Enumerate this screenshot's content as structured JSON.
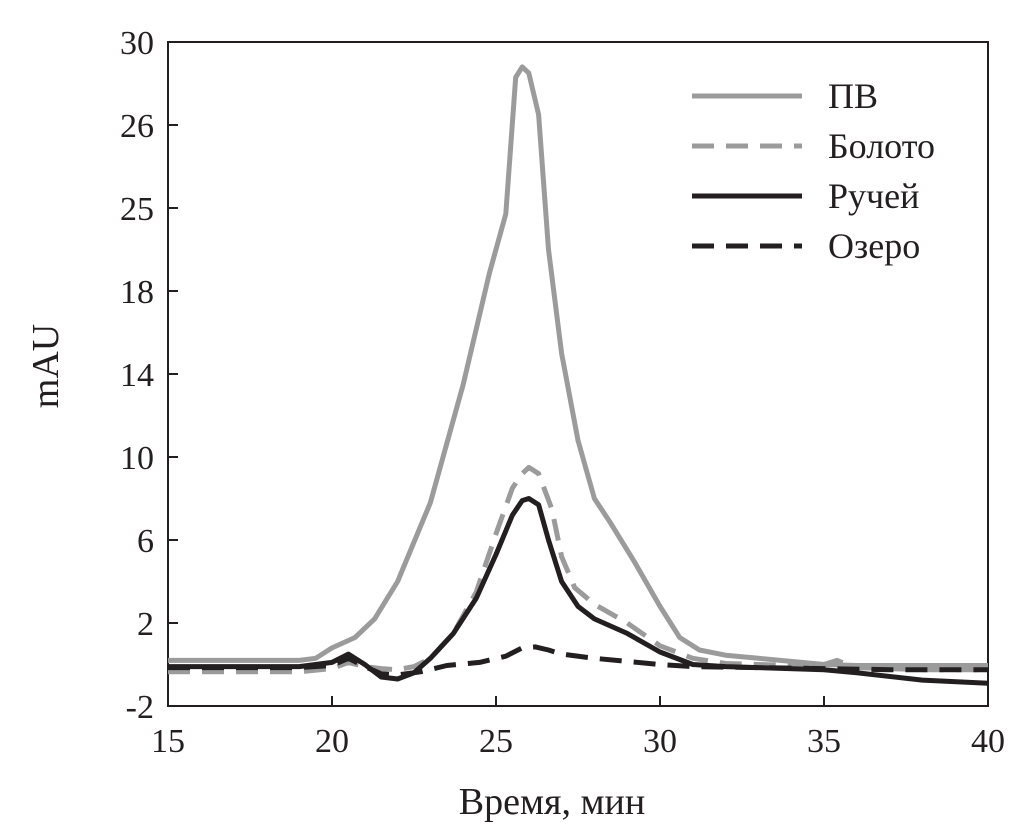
{
  "chart_data": {
    "type": "line",
    "xlabel": "Время, мин",
    "ylabel": "mAU",
    "xlim": [
      15,
      40
    ],
    "x_ticks": [
      "15",
      "20",
      "25",
      "30",
      "35",
      "40"
    ],
    "y_ticks": [
      "30",
      "26",
      "25",
      "18",
      "14",
      "10",
      "6",
      "2",
      "-2"
    ],
    "grid": false,
    "legend_position": "top-right",
    "series": [
      {
        "name": "ПВ",
        "color": "#9b9b9b",
        "dash": "solid",
        "points": [
          [
            15,
            0.2
          ],
          [
            19,
            0.2
          ],
          [
            19.5,
            0.3
          ],
          [
            20,
            0.8
          ],
          [
            20.7,
            1.3
          ],
          [
            21.3,
            2.2
          ],
          [
            22,
            4.0
          ],
          [
            23,
            7.8
          ],
          [
            24,
            13.5
          ],
          [
            24.8,
            19.5
          ],
          [
            25.3,
            24.5
          ],
          [
            25.6,
            28.3
          ],
          [
            25.8,
            28.8
          ],
          [
            26.0,
            28.5
          ],
          [
            26.3,
            26.5
          ],
          [
            26.6,
            21.5
          ],
          [
            27.0,
            15.0
          ],
          [
            27.5,
            10.8
          ],
          [
            28.0,
            8.0
          ],
          [
            28.5,
            6.8
          ],
          [
            29.2,
            5.0
          ],
          [
            30.0,
            2.8
          ],
          [
            30.6,
            1.3
          ],
          [
            31.2,
            0.7
          ],
          [
            32,
            0.45
          ],
          [
            33,
            0.3
          ],
          [
            34,
            0.15
          ],
          [
            35,
            0.0
          ],
          [
            36,
            -0.05
          ],
          [
            40,
            -0.05
          ]
        ]
      },
      {
        "name": "Болото",
        "color": "#9b9b9b",
        "dash": "dashed",
        "points": [
          [
            15,
            -0.35
          ],
          [
            19,
            -0.35
          ],
          [
            20,
            -0.2
          ],
          [
            20.5,
            0.1
          ],
          [
            21,
            -0.1
          ],
          [
            21.5,
            -0.2
          ],
          [
            22,
            -0.25
          ],
          [
            22.5,
            -0.1
          ],
          [
            23,
            0.3
          ],
          [
            23.7,
            1.5
          ],
          [
            24.4,
            3.5
          ],
          [
            25,
            6.3
          ],
          [
            25.5,
            8.5
          ],
          [
            25.8,
            9.2
          ],
          [
            26.0,
            9.5
          ],
          [
            26.3,
            9.2
          ],
          [
            26.7,
            7.5
          ],
          [
            27.0,
            5.2
          ],
          [
            27.4,
            3.7
          ],
          [
            28.0,
            2.9
          ],
          [
            29.0,
            2.0
          ],
          [
            30.0,
            0.9
          ],
          [
            31.0,
            0.3
          ],
          [
            32,
            0.05
          ],
          [
            33,
            0.0
          ],
          [
            34,
            -0.05
          ],
          [
            35,
            0.0
          ],
          [
            35.4,
            0.2
          ],
          [
            35.7,
            0.0
          ],
          [
            36,
            -0.15
          ],
          [
            38,
            -0.25
          ],
          [
            40,
            -0.25
          ]
        ]
      },
      {
        "name": "Ручей",
        "color": "#231f20",
        "dash": "solid",
        "points": [
          [
            15,
            -0.1
          ],
          [
            19,
            -0.1
          ],
          [
            20,
            0.1
          ],
          [
            20.5,
            0.5
          ],
          [
            21,
            0.0
          ],
          [
            21.5,
            -0.6
          ],
          [
            22,
            -0.7
          ],
          [
            22.5,
            -0.4
          ],
          [
            23,
            0.3
          ],
          [
            23.7,
            1.5
          ],
          [
            24.4,
            3.2
          ],
          [
            25,
            5.3
          ],
          [
            25.5,
            7.2
          ],
          [
            25.8,
            7.9
          ],
          [
            26.0,
            8.0
          ],
          [
            26.3,
            7.7
          ],
          [
            26.6,
            6.0
          ],
          [
            27.0,
            4.0
          ],
          [
            27.5,
            2.8
          ],
          [
            28.0,
            2.2
          ],
          [
            29.0,
            1.5
          ],
          [
            30.0,
            0.6
          ],
          [
            31.0,
            0.0
          ],
          [
            32,
            -0.1
          ],
          [
            33,
            -0.15
          ],
          [
            35,
            -0.25
          ],
          [
            36,
            -0.4
          ],
          [
            38,
            -0.75
          ],
          [
            40,
            -0.9
          ]
        ]
      },
      {
        "name": "Озеро",
        "color": "#231f20",
        "dash": "dashed",
        "points": [
          [
            15,
            -0.15
          ],
          [
            19,
            -0.15
          ],
          [
            20,
            -0.05
          ],
          [
            20.5,
            0.3
          ],
          [
            21,
            -0.1
          ],
          [
            21.5,
            -0.45
          ],
          [
            22,
            -0.5
          ],
          [
            22.7,
            -0.35
          ],
          [
            23.5,
            -0.05
          ],
          [
            24.5,
            0.1
          ],
          [
            25.3,
            0.4
          ],
          [
            25.8,
            0.8
          ],
          [
            26.2,
            0.85
          ],
          [
            26.6,
            0.7
          ],
          [
            27.0,
            0.5
          ],
          [
            28.0,
            0.3
          ],
          [
            29.0,
            0.15
          ],
          [
            30.0,
            0.0
          ],
          [
            31.0,
            -0.1
          ],
          [
            33,
            -0.15
          ],
          [
            35,
            -0.2
          ],
          [
            37,
            -0.25
          ],
          [
            40,
            -0.25
          ]
        ]
      }
    ]
  }
}
